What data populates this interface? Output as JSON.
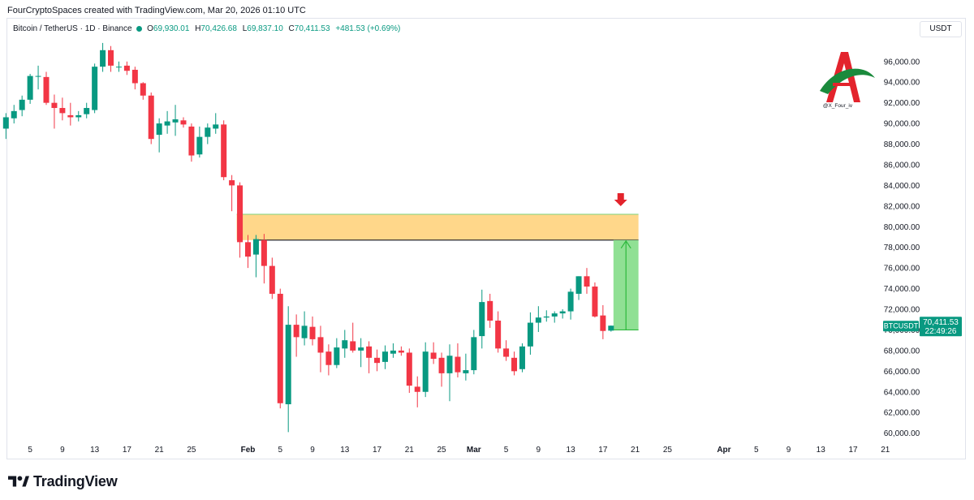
{
  "header": {
    "attribution": "FourCryptoSpaces created with TradingView.com, Mar 20, 2026 01:10 UTC"
  },
  "legend": {
    "symbol": "Bitcoin / TetherUS · 1D · Binance",
    "open_label": "O",
    "open_value": "69,930.01",
    "high_label": "H",
    "high_value": "70,426.68",
    "low_label": "L",
    "low_value": "69,837.10",
    "close_label": "C",
    "close_value": "70,411.53",
    "change_value": "+481.53 (+0.69%)"
  },
  "currency_button": "USDT",
  "watermark_handle": "@X_Four_iv",
  "price_tag": {
    "symbol": "BTCUSDT",
    "price": "70,411.53",
    "countdown": "22:49:26"
  },
  "footer": {
    "brand": "TradingView"
  },
  "colors": {
    "up": "#089981",
    "down": "#f23645",
    "zone_fill": "#ffd78a",
    "target_fill": "#90e094",
    "target_line": "#2db83d"
  },
  "chart_data": {
    "type": "candlestick",
    "symbol": "BTCUSDT",
    "interval": "1D",
    "y_ticks": [
      "96,000.00",
      "94,000.00",
      "92,000.00",
      "90,000.00",
      "88,000.00",
      "86,000.00",
      "84,000.00",
      "82,000.00",
      "80,000.00",
      "78,000.00",
      "76,000.00",
      "74,000.00",
      "72,000.00",
      "70,000.00",
      "68,000.00",
      "66,000.00",
      "64,000.00",
      "62,000.00",
      "60,000.00"
    ],
    "ylim": [
      59500,
      98500
    ],
    "x_ticks": [
      {
        "label": "5",
        "day": -27
      },
      {
        "label": "9",
        "day": -23
      },
      {
        "label": "13",
        "day": -19
      },
      {
        "label": "17",
        "day": -15
      },
      {
        "label": "21",
        "day": -11
      },
      {
        "label": "25",
        "day": -7
      },
      {
        "label": "Feb",
        "day": 0,
        "bold": true
      },
      {
        "label": "5",
        "day": 4
      },
      {
        "label": "9",
        "day": 8
      },
      {
        "label": "13",
        "day": 12
      },
      {
        "label": "17",
        "day": 16
      },
      {
        "label": "21",
        "day": 20
      },
      {
        "label": "25",
        "day": 24
      },
      {
        "label": "Mar",
        "day": 28,
        "bold": true
      },
      {
        "label": "5",
        "day": 32
      },
      {
        "label": "9",
        "day": 36
      },
      {
        "label": "13",
        "day": 40
      },
      {
        "label": "17",
        "day": 44
      },
      {
        "label": "21",
        "day": 48
      },
      {
        "label": "25",
        "day": 52
      },
      {
        "label": "Apr",
        "day": 59,
        "bold": true
      },
      {
        "label": "5",
        "day": 63
      },
      {
        "label": "9",
        "day": 67
      },
      {
        "label": "13",
        "day": 71
      },
      {
        "label": "17",
        "day": 75
      },
      {
        "label": "21",
        "day": 79
      }
    ],
    "candles": [
      {
        "d": -30,
        "o": 89500,
        "h": 91000,
        "l": 88500,
        "c": 90600
      },
      {
        "d": -29,
        "o": 90500,
        "h": 91800,
        "l": 90000,
        "c": 91200
      },
      {
        "d": -28,
        "o": 91300,
        "h": 92700,
        "l": 90700,
        "c": 92300
      },
      {
        "d": -27,
        "o": 92300,
        "h": 94800,
        "l": 91900,
        "c": 94600
      },
      {
        "d": -26,
        "o": 94600,
        "h": 95600,
        "l": 93300,
        "c": 94600
      },
      {
        "d": -25,
        "o": 94500,
        "h": 95000,
        "l": 91800,
        "c": 92000
      },
      {
        "d": -24,
        "o": 92000,
        "h": 92800,
        "l": 89500,
        "c": 91500
      },
      {
        "d": -23,
        "o": 91500,
        "h": 92500,
        "l": 90300,
        "c": 91000
      },
      {
        "d": -22,
        "o": 90800,
        "h": 92000,
        "l": 89800,
        "c": 90600
      },
      {
        "d": -21,
        "o": 90600,
        "h": 91200,
        "l": 90200,
        "c": 90800
      },
      {
        "d": -20,
        "o": 90900,
        "h": 92000,
        "l": 90500,
        "c": 91500
      },
      {
        "d": -19,
        "o": 91300,
        "h": 95800,
        "l": 91000,
        "c": 95500
      },
      {
        "d": -18,
        "o": 95500,
        "h": 97800,
        "l": 95000,
        "c": 97100
      },
      {
        "d": -17,
        "o": 97100,
        "h": 97500,
        "l": 95000,
        "c": 95600
      },
      {
        "d": -16,
        "o": 95500,
        "h": 96000,
        "l": 95000,
        "c": 95500
      },
      {
        "d": -15,
        "o": 95600,
        "h": 96000,
        "l": 94700,
        "c": 95100
      },
      {
        "d": -14,
        "o": 95200,
        "h": 95500,
        "l": 93300,
        "c": 93900
      },
      {
        "d": -13,
        "o": 93900,
        "h": 94000,
        "l": 92300,
        "c": 92700
      },
      {
        "d": -12,
        "o": 92700,
        "h": 93000,
        "l": 88000,
        "c": 88500
      },
      {
        "d": -11,
        "o": 88900,
        "h": 90500,
        "l": 87200,
        "c": 90000
      },
      {
        "d": -10,
        "o": 89800,
        "h": 91200,
        "l": 89000,
        "c": 90200
      },
      {
        "d": -9,
        "o": 90100,
        "h": 91800,
        "l": 88800,
        "c": 90400
      },
      {
        "d": -8,
        "o": 90300,
        "h": 90600,
        "l": 89600,
        "c": 89900
      },
      {
        "d": -7,
        "o": 89700,
        "h": 90000,
        "l": 86300,
        "c": 86900
      },
      {
        "d": -6,
        "o": 87000,
        "h": 89700,
        "l": 86700,
        "c": 88700
      },
      {
        "d": -5,
        "o": 88700,
        "h": 90000,
        "l": 88000,
        "c": 89600
      },
      {
        "d": -4,
        "o": 89500,
        "h": 91000,
        "l": 89000,
        "c": 89900
      },
      {
        "d": -3,
        "o": 89900,
        "h": 90300,
        "l": 84500,
        "c": 84800
      },
      {
        "d": -2,
        "o": 84500,
        "h": 85000,
        "l": 81500,
        "c": 84000
      },
      {
        "d": -1,
        "o": 84000,
        "h": 84300,
        "l": 77000,
        "c": 78500
      },
      {
        "d": 0,
        "o": 78500,
        "h": 79200,
        "l": 76000,
        "c": 77100
      },
      {
        "d": 1,
        "o": 77300,
        "h": 79200,
        "l": 75100,
        "c": 78800
      },
      {
        "d": 2,
        "o": 78700,
        "h": 79300,
        "l": 74500,
        "c": 76200
      },
      {
        "d": 3,
        "o": 76200,
        "h": 77000,
        "l": 73000,
        "c": 73500
      },
      {
        "d": 4,
        "o": 73500,
        "h": 74000,
        "l": 62400,
        "c": 62900
      },
      {
        "d": 5,
        "o": 62800,
        "h": 72300,
        "l": 60100,
        "c": 70500
      },
      {
        "d": 6,
        "o": 70500,
        "h": 71500,
        "l": 67400,
        "c": 69300
      },
      {
        "d": 7,
        "o": 69200,
        "h": 71800,
        "l": 68500,
        "c": 70400
      },
      {
        "d": 8,
        "o": 70300,
        "h": 71300,
        "l": 68500,
        "c": 69100
      },
      {
        "d": 9,
        "o": 69300,
        "h": 70400,
        "l": 65900,
        "c": 67800
      },
      {
        "d": 10,
        "o": 67900,
        "h": 68600,
        "l": 65600,
        "c": 66600
      },
      {
        "d": 11,
        "o": 66600,
        "h": 69200,
        "l": 66300,
        "c": 68300
      },
      {
        "d": 12,
        "o": 68200,
        "h": 70000,
        "l": 67300,
        "c": 69000
      },
      {
        "d": 13,
        "o": 68900,
        "h": 70700,
        "l": 67800,
        "c": 68000
      },
      {
        "d": 14,
        "o": 68000,
        "h": 69200,
        "l": 66400,
        "c": 68300
      },
      {
        "d": 15,
        "o": 68400,
        "h": 68900,
        "l": 65800,
        "c": 67300
      },
      {
        "d": 16,
        "o": 67300,
        "h": 68100,
        "l": 66000,
        "c": 66800
      },
      {
        "d": 17,
        "o": 66900,
        "h": 68500,
        "l": 66200,
        "c": 67900
      },
      {
        "d": 18,
        "o": 67700,
        "h": 68700,
        "l": 67300,
        "c": 68000
      },
      {
        "d": 19,
        "o": 68000,
        "h": 68400,
        "l": 67500,
        "c": 67800
      },
      {
        "d": 20,
        "o": 67800,
        "h": 68200,
        "l": 63900,
        "c": 64600
      },
      {
        "d": 21,
        "o": 64500,
        "h": 65500,
        "l": 62500,
        "c": 64000
      },
      {
        "d": 22,
        "o": 64000,
        "h": 68800,
        "l": 63500,
        "c": 67900
      },
      {
        "d": 23,
        "o": 67800,
        "h": 68800,
        "l": 66700,
        "c": 67200
      },
      {
        "d": 24,
        "o": 67300,
        "h": 67800,
        "l": 64500,
        "c": 65800
      },
      {
        "d": 25,
        "o": 65800,
        "h": 68600,
        "l": 63100,
        "c": 67500
      },
      {
        "d": 26,
        "o": 67400,
        "h": 68700,
        "l": 65400,
        "c": 65900
      },
      {
        "d": 27,
        "o": 65800,
        "h": 67700,
        "l": 65100,
        "c": 66100
      },
      {
        "d": 28,
        "o": 66100,
        "h": 70000,
        "l": 65700,
        "c": 69300
      },
      {
        "d": 29,
        "o": 69400,
        "h": 73900,
        "l": 68200,
        "c": 72700
      },
      {
        "d": 30,
        "o": 72800,
        "h": 73500,
        "l": 70200,
        "c": 70900
      },
      {
        "d": 31,
        "o": 70900,
        "h": 71800,
        "l": 67800,
        "c": 68200
      },
      {
        "d": 32,
        "o": 68200,
        "h": 69000,
        "l": 67000,
        "c": 67400
      },
      {
        "d": 33,
        "o": 67300,
        "h": 67900,
        "l": 65600,
        "c": 66000
      },
      {
        "d": 34,
        "o": 66200,
        "h": 68700,
        "l": 65900,
        "c": 68400
      },
      {
        "d": 35,
        "o": 68400,
        "h": 71700,
        "l": 67600,
        "c": 70700
      },
      {
        "d": 36,
        "o": 70700,
        "h": 72300,
        "l": 69800,
        "c": 71200
      },
      {
        "d": 37,
        "o": 71200,
        "h": 71900,
        "l": 70800,
        "c": 71300
      },
      {
        "d": 38,
        "o": 71300,
        "h": 71800,
        "l": 70700,
        "c": 71600
      },
      {
        "d": 39,
        "o": 71600,
        "h": 72000,
        "l": 71100,
        "c": 71800
      },
      {
        "d": 40,
        "o": 71800,
        "h": 74000,
        "l": 71000,
        "c": 73700
      },
      {
        "d": 41,
        "o": 73500,
        "h": 75200,
        "l": 72900,
        "c": 75200
      },
      {
        "d": 42,
        "o": 75200,
        "h": 76000,
        "l": 73500,
        "c": 74200
      },
      {
        "d": 43,
        "o": 74200,
        "h": 74600,
        "l": 71200,
        "c": 71300
      },
      {
        "d": 44,
        "o": 71400,
        "h": 72400,
        "l": 69100,
        "c": 69900
      },
      {
        "d": 45,
        "o": 69930.01,
        "h": 70426.68,
        "l": 69837.1,
        "c": 70411.53
      }
    ],
    "resistance_zone": {
      "y_low": 78700,
      "y_high": 81200,
      "x_from_day": -1,
      "x_to_day": 48
    },
    "target_box": {
      "y_low": 70000,
      "y_high": 78700,
      "x_from_day": 45,
      "x_to_day": 48
    },
    "last_price": 70411.53
  }
}
